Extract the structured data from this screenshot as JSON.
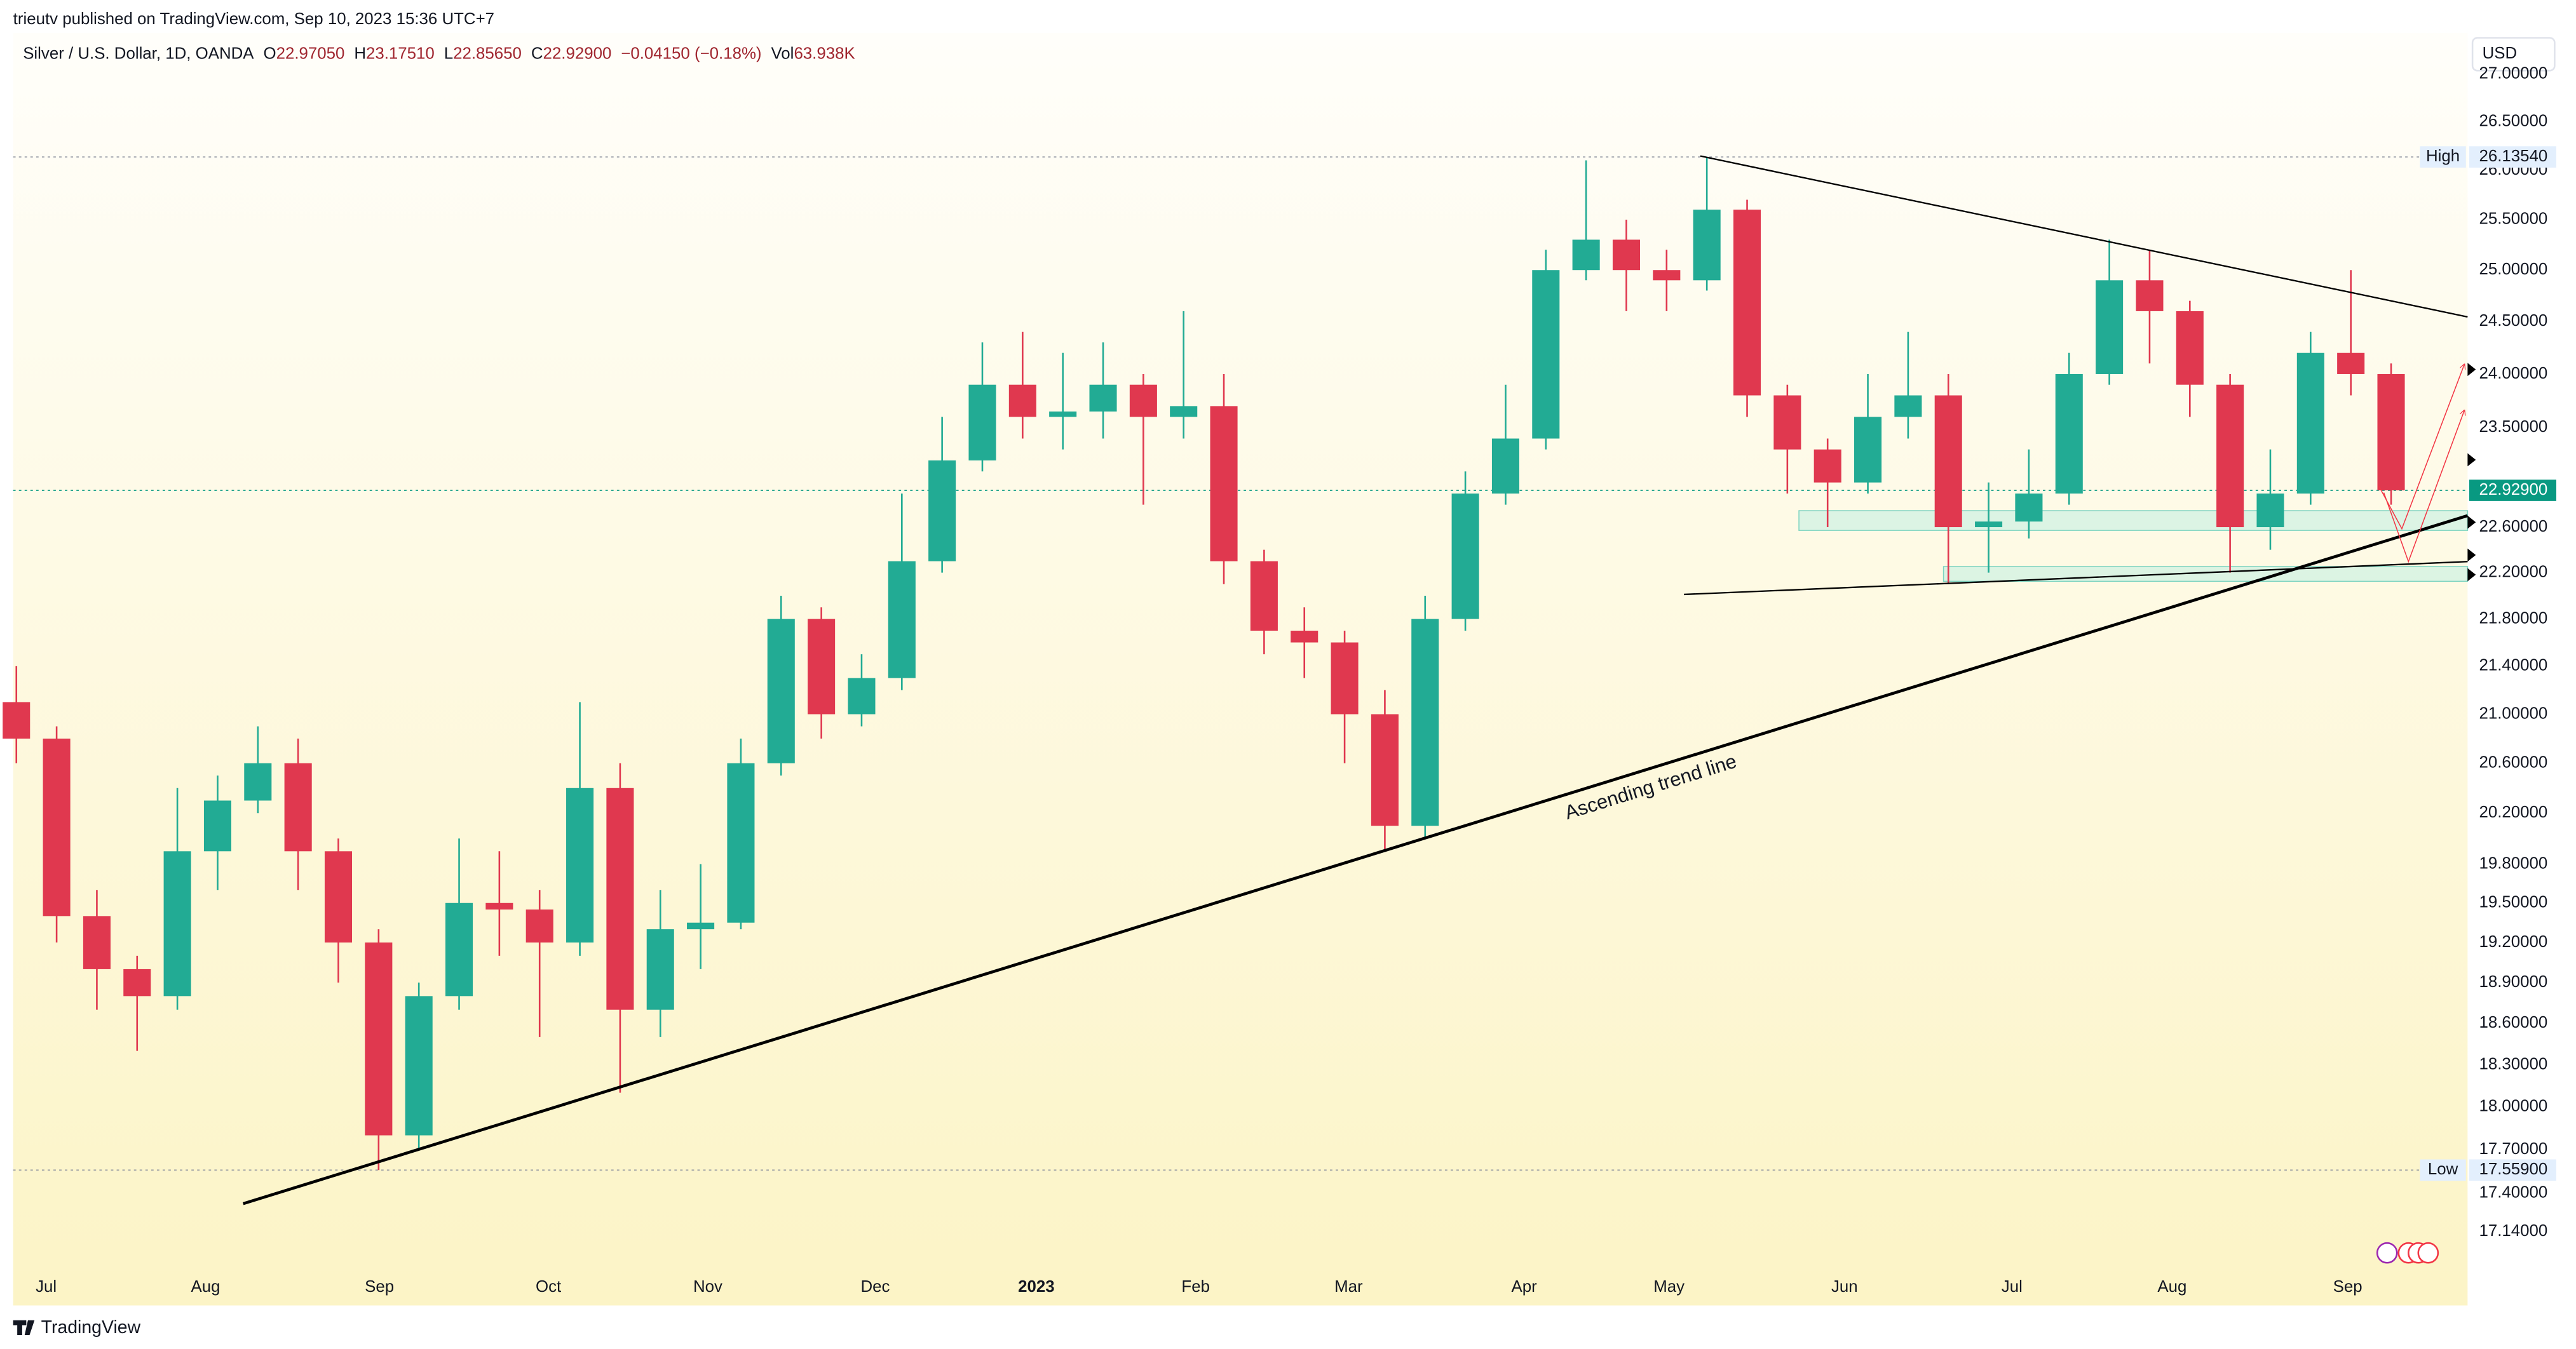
{
  "header": {
    "publisher": "trieutv published on TradingView.com, Sep 10, 2023 15:36 UTC+7",
    "symbol": "Silver / U.S. Dollar, 1D, OANDA",
    "ohlc": [
      {
        "label": "O",
        "value": "22.97050"
      },
      {
        "label": "H",
        "value": "23.17510"
      },
      {
        "label": "L",
        "value": "22.85650"
      },
      {
        "label": "C",
        "value": "22.92900"
      }
    ],
    "change": "−0.04150 (−0.18%)",
    "volume": {
      "label": "Vol",
      "value": "63.938K"
    }
  },
  "footer": {
    "brand": "TradingView"
  },
  "chart_data": {
    "type": "candlestick",
    "log": true,
    "currency": "USD",
    "up_color": "#22ab94",
    "down_color": "#e0384f",
    "annotation": "Ascending trend line",
    "xlim": [
      -0.4,
      304.5
    ],
    "ylim": [
      16.65,
      27.44
    ],
    "xticks": [
      {
        "value": 3.7,
        "label": "Jul"
      },
      {
        "value": 23.5,
        "label": "Aug"
      },
      {
        "value": 45.1,
        "label": "Sep"
      },
      {
        "value": 66.1,
        "label": "Oct"
      },
      {
        "value": 85.9,
        "label": "Nov"
      },
      {
        "value": 106.7,
        "label": "Dec"
      },
      {
        "value": 126.7,
        "label": "2023"
      },
      {
        "value": 146.5,
        "label": "Feb"
      },
      {
        "value": 165.5,
        "label": "Mar"
      },
      {
        "value": 187.3,
        "label": "Apr"
      },
      {
        "value": 205.3,
        "label": "May"
      },
      {
        "value": 227.1,
        "label": "Jun"
      },
      {
        "value": 247.9,
        "label": "Jul"
      },
      {
        "value": 267.8,
        "label": "Aug"
      },
      {
        "value": 289.6,
        "label": "Sep"
      }
    ],
    "yticks": [
      {
        "value": 27,
        "label": "27.00000"
      },
      {
        "value": 26.5,
        "label": "26.50000"
      },
      {
        "value": 26,
        "label": "26.00000"
      },
      {
        "value": 25.5,
        "label": "25.50000"
      },
      {
        "value": 25,
        "label": "25.00000"
      },
      {
        "value": 24.5,
        "label": "24.50000"
      },
      {
        "value": 24,
        "label": "24.00000"
      },
      {
        "value": 23.5,
        "label": "23.50000"
      },
      {
        "value": 22.6,
        "label": "22.60000"
      },
      {
        "value": 22.2,
        "label": "22.20000"
      },
      {
        "value": 21.8,
        "label": "21.80000"
      },
      {
        "value": 21.4,
        "label": "21.40000"
      },
      {
        "value": 21,
        "label": "21.00000"
      },
      {
        "value": 20.6,
        "label": "20.60000"
      },
      {
        "value": 20.2,
        "label": "20.20000"
      },
      {
        "value": 19.8,
        "label": "19.80000"
      },
      {
        "value": 19.5,
        "label": "19.50000"
      },
      {
        "value": 19.2,
        "label": "19.20000"
      },
      {
        "value": 18.9,
        "label": "18.90000"
      },
      {
        "value": 18.6,
        "label": "18.60000"
      },
      {
        "value": 18.3,
        "label": "18.30000"
      },
      {
        "value": 18,
        "label": "18.00000"
      },
      {
        "value": 17.7,
        "label": "17.70000"
      },
      {
        "value": 17.4,
        "label": "17.40000"
      },
      {
        "value": 17.14,
        "label": "17.14000"
      }
    ],
    "x": [
      0,
      5,
      10,
      15,
      20,
      25,
      30,
      35,
      40,
      45,
      50,
      55,
      60,
      65,
      70,
      75,
      80,
      85,
      90,
      95,
      100,
      105,
      110,
      115,
      120,
      125,
      130,
      135,
      140,
      145,
      150,
      155,
      160,
      165,
      170,
      175,
      180,
      185,
      190,
      195,
      200,
      205,
      210,
      215,
      220,
      225,
      230,
      235,
      240,
      245,
      250,
      255,
      260,
      265,
      270,
      275,
      280,
      285,
      290,
      295
    ],
    "open": [
      21.1,
      20.8,
      19.4,
      19.0,
      18.8,
      19.9,
      20.3,
      20.6,
      19.9,
      19.2,
      17.8,
      18.8,
      19.5,
      19.45,
      19.2,
      20.4,
      18.7,
      19.3,
      19.35,
      20.6,
      21.8,
      21.0,
      21.3,
      22.3,
      23.2,
      23.9,
      23.6,
      23.65,
      23.9,
      23.6,
      23.7,
      22.3,
      21.7,
      21.6,
      21.0,
      20.1,
      21.8,
      22.9,
      23.4,
      25.0,
      25.3,
      25.0,
      24.9,
      25.6,
      23.8,
      23.3,
      23.0,
      23.6,
      23.8,
      22.6,
      22.65,
      22.9,
      24.0,
      24.9,
      24.6,
      23.9,
      22.6,
      22.9,
      24.2,
      24.0
    ],
    "high": [
      21.4,
      20.9,
      19.6,
      19.1,
      20.4,
      20.5,
      20.9,
      20.8,
      20.0,
      19.3,
      18.9,
      20.0,
      19.9,
      19.6,
      21.1,
      20.6,
      19.6,
      19.8,
      20.8,
      22.0,
      21.9,
      21.5,
      22.9,
      23.6,
      24.3,
      24.4,
      24.2,
      24.3,
      24.0,
      24.6,
      24.0,
      22.4,
      21.9,
      21.7,
      21.2,
      22.0,
      23.1,
      23.9,
      25.2,
      26.1,
      25.5,
      25.2,
      26.1354,
      25.7,
      23.9,
      23.4,
      24.0,
      24.4,
      24.0,
      23.0,
      23.3,
      24.2,
      25.3,
      25.2,
      24.7,
      24.0,
      23.3,
      24.4,
      25.0,
      24.1
    ],
    "low": [
      20.6,
      19.2,
      18.7,
      18.4,
      18.7,
      19.6,
      20.2,
      19.6,
      18.9,
      17.559,
      17.7,
      18.7,
      19.1,
      18.5,
      19.1,
      18.1,
      18.5,
      19.0,
      19.3,
      20.5,
      20.8,
      20.9,
      21.2,
      22.2,
      23.1,
      23.4,
      23.3,
      23.4,
      22.8,
      23.4,
      22.1,
      21.5,
      21.3,
      20.6,
      19.9,
      20.0,
      21.7,
      22.8,
      23.3,
      24.9,
      24.6,
      24.6,
      24.8,
      23.6,
      22.9,
      22.6,
      22.9,
      23.4,
      22.1,
      22.2,
      22.5,
      22.8,
      23.9,
      24.1,
      23.6,
      22.2,
      22.4,
      22.8,
      23.8,
      22.8
    ],
    "close": [
      20.8,
      19.4,
      19.0,
      18.8,
      19.9,
      20.3,
      20.6,
      19.9,
      19.2,
      17.8,
      18.8,
      19.5,
      19.45,
      19.2,
      20.4,
      18.7,
      19.3,
      19.35,
      20.6,
      21.8,
      21.0,
      21.3,
      22.3,
      23.2,
      23.9,
      23.6,
      23.65,
      23.9,
      23.6,
      23.7,
      22.3,
      21.7,
      21.6,
      21.0,
      20.1,
      21.8,
      22.9,
      23.4,
      25.0,
      25.3,
      25.0,
      24.9,
      25.6,
      23.8,
      23.3,
      23.0,
      23.6,
      23.8,
      22.6,
      22.65,
      22.9,
      24.0,
      24.9,
      24.6,
      23.9,
      22.6,
      22.9,
      24.2,
      24.0,
      22.929
    ],
    "price_lines": [
      {
        "label": "High",
        "value": 26.1354,
        "value_label": "26.13540"
      },
      {
        "label": "Low",
        "value": 17.559,
        "value_label": "17.55900"
      }
    ],
    "last_price": {
      "value": 22.929,
      "value_label": "22.92900",
      "color": "#089981"
    }
  }
}
